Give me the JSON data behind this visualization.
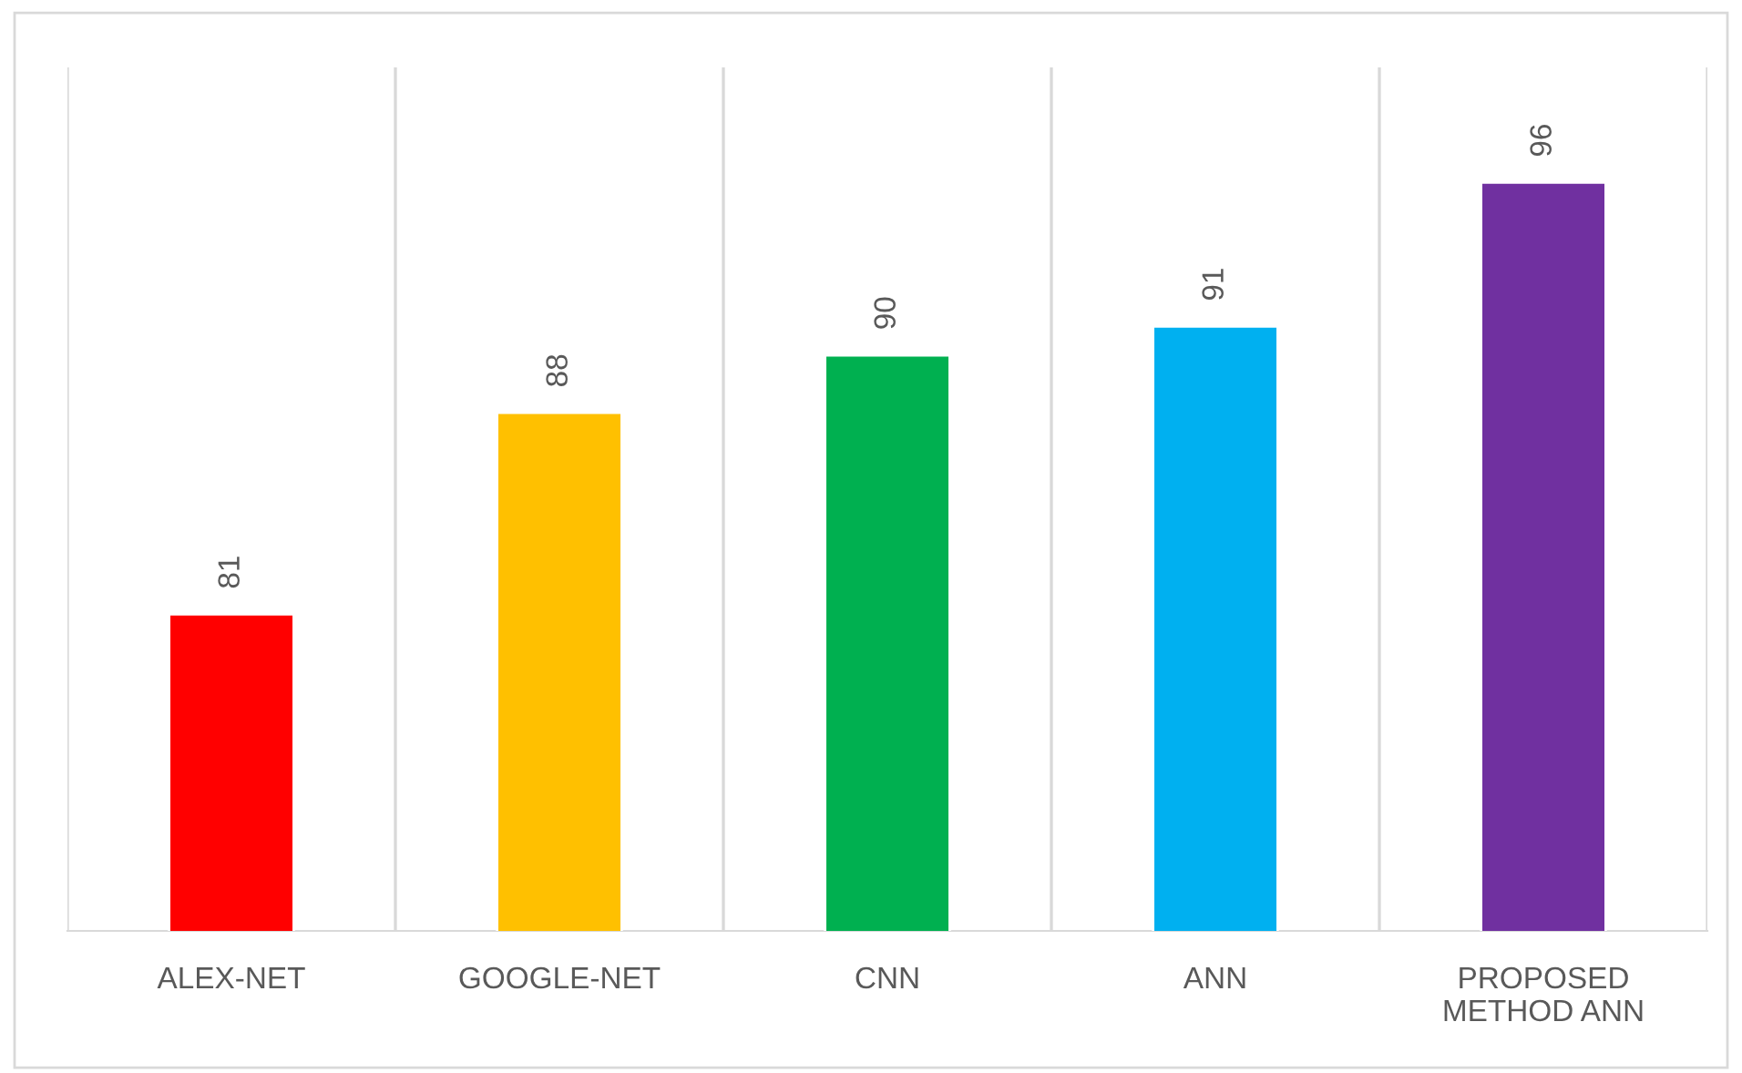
{
  "chart_data": {
    "type": "bar",
    "categories": [
      "ALEX-NET",
      "GOOGLE-NET",
      "CNN",
      "ANN",
      "PROPOSED\nMETHOD ANN"
    ],
    "values": [
      81,
      88,
      90,
      91,
      96
    ],
    "colors": [
      "#ff0000",
      "#ffc000",
      "#00b050",
      "#00b0f0",
      "#7030a0"
    ],
    "ylim": [
      70,
      100
    ],
    "data_labels": true,
    "grid": "x",
    "tick_labels": "x",
    "legend": false
  }
}
